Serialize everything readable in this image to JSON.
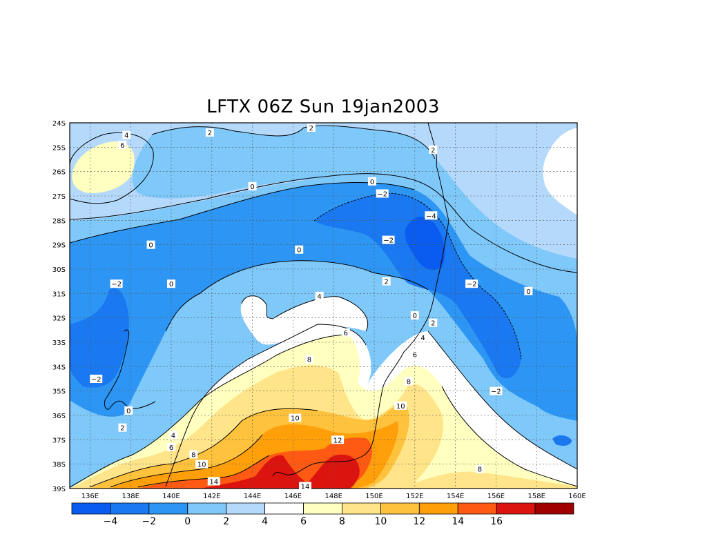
{
  "title": "LFTX 06Z Sun 19jan2003",
  "chart_data": {
    "type": "heatmap",
    "variable": "LFTX",
    "xlim": [
      135,
      160
    ],
    "ylim": [
      -39,
      -24
    ],
    "lon_ticks": [
      "136E",
      "138E",
      "140E",
      "142E",
      "144E",
      "146E",
      "148E",
      "150E",
      "152E",
      "154E",
      "156E",
      "158E",
      "160E"
    ],
    "lat_ticks": [
      "24S",
      "25S",
      "26S",
      "27S",
      "28S",
      "29S",
      "30S",
      "31S",
      "32S",
      "33S",
      "34S",
      "35S",
      "36S",
      "37S",
      "38S",
      "39S"
    ],
    "grid": "dotted",
    "colorbar": {
      "colors": [
        "#0a5cf0",
        "#1a78f0",
        "#2d96f5",
        "#7fc8fa",
        "#b4d9fb",
        "#ffffff",
        "#ffffc0",
        "#ffe48a",
        "#ffc23c",
        "#ffa00a",
        "#ff5a14",
        "#dc1410",
        "#a00000"
      ],
      "labels": [
        "-4",
        "-2",
        "0",
        "2",
        "4",
        "6",
        "8",
        "10",
        "12",
        "14",
        "16"
      ]
    },
    "contour_labels": [
      {
        "text": "4",
        "lon": 137.8,
        "lat": -24.5
      },
      {
        "text": "6",
        "lon": 137.6,
        "lat": -24.9
      },
      {
        "text": "2",
        "lon": 141.9,
        "lat": -24.4
      },
      {
        "text": "2",
        "lon": 146.9,
        "lat": -24.2
      },
      {
        "text": "2",
        "lon": 152.9,
        "lat": -25.1
      },
      {
        "text": "0",
        "lon": 144.0,
        "lat": -26.6
      },
      {
        "text": "0",
        "lon": 149.9,
        "lat": -26.4
      },
      {
        "text": "-2",
        "lon": 150.4,
        "lat": -26.9
      },
      {
        "text": "-4",
        "lon": 152.8,
        "lat": -27.8
      },
      {
        "text": "-2",
        "lon": 150.7,
        "lat": -28.8
      },
      {
        "text": "0",
        "lon": 139.0,
        "lat": -29.0
      },
      {
        "text": "0",
        "lon": 146.3,
        "lat": -29.2
      },
      {
        "text": "2",
        "lon": 150.6,
        "lat": -30.5
      },
      {
        "text": "-2",
        "lon": 154.8,
        "lat": -30.6
      },
      {
        "text": "0",
        "lon": 157.6,
        "lat": -30.9
      },
      {
        "text": "-2",
        "lon": 137.3,
        "lat": -30.6
      },
      {
        "text": "0",
        "lon": 140.0,
        "lat": -30.6
      },
      {
        "text": "4",
        "lon": 147.3,
        "lat": -31.1
      },
      {
        "text": "0",
        "lon": 152.0,
        "lat": -31.9
      },
      {
        "text": "2",
        "lon": 152.9,
        "lat": -32.2
      },
      {
        "text": "4",
        "lon": 152.4,
        "lat": -32.8
      },
      {
        "text": "6",
        "lon": 148.6,
        "lat": -32.6
      },
      {
        "text": "6",
        "lon": 152.0,
        "lat": -33.5
      },
      {
        "text": "8",
        "lon": 146.8,
        "lat": -33.7
      },
      {
        "text": "8",
        "lon": 151.7,
        "lat": -34.6
      },
      {
        "text": "-2",
        "lon": 136.3,
        "lat": -34.5
      },
      {
        "text": "-2",
        "lon": 156.0,
        "lat": -35.0
      },
      {
        "text": "0",
        "lon": 137.9,
        "lat": -35.8
      },
      {
        "text": "10",
        "lon": 146.1,
        "lat": -36.1
      },
      {
        "text": "10",
        "lon": 151.3,
        "lat": -35.6
      },
      {
        "text": "2",
        "lon": 137.6,
        "lat": -36.5
      },
      {
        "text": "4",
        "lon": 140.1,
        "lat": -36.8
      },
      {
        "text": "6",
        "lon": 140.0,
        "lat": -37.3
      },
      {
        "text": "12",
        "lon": 148.2,
        "lat": -37.0
      },
      {
        "text": "8",
        "lon": 141.1,
        "lat": -37.6
      },
      {
        "text": "10",
        "lon": 141.5,
        "lat": -38.0
      },
      {
        "text": "8",
        "lon": 155.2,
        "lat": -38.2
      },
      {
        "text": "14",
        "lon": 142.1,
        "lat": -38.7
      },
      {
        "text": "14",
        "lon": 146.6,
        "lat": -38.9
      }
    ]
  }
}
